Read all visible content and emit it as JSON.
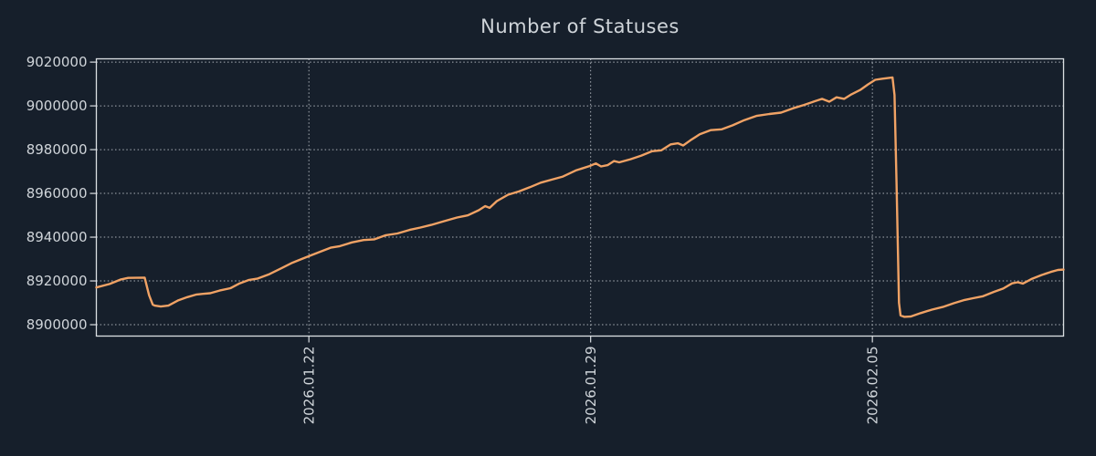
{
  "style": {
    "background": "#161f2b",
    "text_color": "#cfd4d9",
    "spine_color": "#dbdfe3",
    "grid_color": "#c3c9cf",
    "line_color": "#f0a265"
  },
  "chart_data": {
    "type": "line",
    "title": "Number of Statuses",
    "legend": "none",
    "grid": "dotted, both axes, at major ticks",
    "x_axis": {
      "kind": "time",
      "tick_labels": [
        "2026.01.22",
        "2026.01.29",
        "2026.02.05"
      ],
      "tick_positions_days": [
        0,
        7,
        14
      ],
      "domain_days": [
        -5.28,
        18.75
      ],
      "tick_label_rotation_deg": 90
    },
    "y_axis": {
      "tick_values": [
        8900000,
        8920000,
        8940000,
        8960000,
        8980000,
        9000000,
        9020000
      ],
      "tick_labels": [
        "8900000",
        "8920000",
        "8940000",
        "8960000",
        "8980000",
        "9000000",
        "9020000"
      ],
      "domain": [
        8894800,
        9021500
      ]
    },
    "series": [
      {
        "name": "number-of-statuses",
        "color": "#f0a265",
        "points": [
          [
            -5.28,
            8917000
          ],
          [
            -4.95,
            8918600
          ],
          [
            -4.67,
            8920700
          ],
          [
            -4.49,
            8921400
          ],
          [
            -4.08,
            8921500
          ],
          [
            -3.97,
            8913500
          ],
          [
            -3.88,
            8909200
          ],
          [
            -3.83,
            8908700
          ],
          [
            -3.68,
            8908300
          ],
          [
            -3.49,
            8908700
          ],
          [
            -3.24,
            8911200
          ],
          [
            -3.02,
            8912600
          ],
          [
            -2.79,
            8913800
          ],
          [
            -2.63,
            8914100
          ],
          [
            -2.45,
            8914400
          ],
          [
            -2.22,
            8915600
          ],
          [
            -1.95,
            8916700
          ],
          [
            -1.72,
            8918900
          ],
          [
            -1.5,
            8920400
          ],
          [
            -1.27,
            8921100
          ],
          [
            -0.98,
            8923100
          ],
          [
            -0.68,
            8925800
          ],
          [
            -0.41,
            8928300
          ],
          [
            -0.18,
            8930000
          ],
          [
            0.05,
            8931700
          ],
          [
            0.32,
            8933600
          ],
          [
            0.54,
            8935200
          ],
          [
            0.77,
            8935900
          ],
          [
            1.07,
            8937600
          ],
          [
            1.36,
            8938700
          ],
          [
            1.63,
            8939000
          ],
          [
            1.91,
            8940900
          ],
          [
            2.2,
            8941700
          ],
          [
            2.5,
            8943300
          ],
          [
            2.77,
            8944400
          ],
          [
            3.04,
            8945600
          ],
          [
            3.36,
            8947300
          ],
          [
            3.68,
            8949000
          ],
          [
            3.95,
            8950000
          ],
          [
            4.22,
            8952300
          ],
          [
            4.38,
            8954200
          ],
          [
            4.49,
            8953400
          ],
          [
            4.67,
            8956500
          ],
          [
            4.95,
            8959400
          ],
          [
            5.22,
            8960900
          ],
          [
            5.49,
            8962800
          ],
          [
            5.76,
            8964900
          ],
          [
            6.04,
            8966300
          ],
          [
            6.31,
            8967700
          ],
          [
            6.63,
            8970500
          ],
          [
            6.97,
            8972500
          ],
          [
            7.13,
            8973700
          ],
          [
            7.26,
            8972300
          ],
          [
            7.42,
            8972900
          ],
          [
            7.58,
            8974800
          ],
          [
            7.71,
            8974200
          ],
          [
            7.99,
            8975600
          ],
          [
            8.26,
            8977300
          ],
          [
            8.53,
            8979300
          ],
          [
            8.76,
            8979700
          ],
          [
            8.99,
            8982400
          ],
          [
            9.17,
            8982900
          ],
          [
            9.3,
            8981900
          ],
          [
            9.48,
            8984300
          ],
          [
            9.71,
            8987000
          ],
          [
            9.98,
            8988900
          ],
          [
            10.26,
            8989300
          ],
          [
            10.53,
            8991100
          ],
          [
            10.82,
            8993500
          ],
          [
            11.12,
            8995400
          ],
          [
            11.44,
            8996300
          ],
          [
            11.73,
            8996900
          ],
          [
            12.03,
            8998900
          ],
          [
            12.3,
            9000400
          ],
          [
            12.57,
            9002100
          ],
          [
            12.75,
            9003200
          ],
          [
            12.93,
            9001900
          ],
          [
            13.11,
            9003900
          ],
          [
            13.3,
            9003200
          ],
          [
            13.48,
            9005300
          ],
          [
            13.7,
            9007300
          ],
          [
            13.89,
            9009800
          ],
          [
            14.07,
            9011900
          ],
          [
            14.25,
            9012400
          ],
          [
            14.5,
            9013000
          ],
          [
            14.55,
            9005000
          ],
          [
            14.6,
            8965000
          ],
          [
            14.66,
            8910000
          ],
          [
            14.7,
            8904200
          ],
          [
            14.79,
            8903600
          ],
          [
            14.95,
            8903700
          ],
          [
            15.2,
            8905300
          ],
          [
            15.48,
            8906900
          ],
          [
            15.75,
            8908100
          ],
          [
            16.02,
            8909800
          ],
          [
            16.29,
            8911300
          ],
          [
            16.5,
            8912100
          ],
          [
            16.75,
            8913000
          ],
          [
            17.02,
            8915000
          ],
          [
            17.25,
            8916500
          ],
          [
            17.47,
            8918900
          ],
          [
            17.61,
            8919400
          ],
          [
            17.74,
            8918800
          ],
          [
            17.97,
            8921000
          ],
          [
            18.2,
            8922700
          ],
          [
            18.43,
            8924100
          ],
          [
            18.61,
            8925000
          ],
          [
            18.75,
            8925200
          ]
        ]
      }
    ]
  }
}
